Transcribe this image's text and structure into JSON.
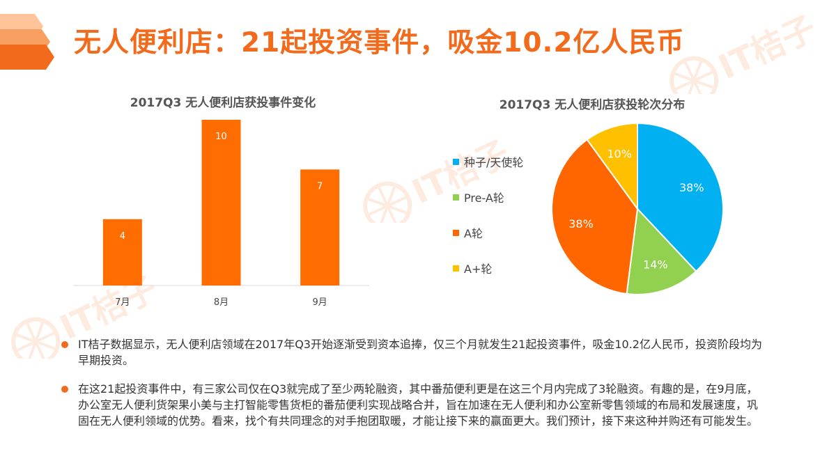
{
  "page": {
    "title": "无人便利店：21起投资事件，吸金10.2亿人民币",
    "brand": {
      "watermark_text": "IT桔子",
      "accent_color": "#f26b1d"
    }
  },
  "chart_data": [
    {
      "type": "bar",
      "title": "2017Q3 无人便利店获投事件变化",
      "categories": [
        "7月",
        "8月",
        "9月"
      ],
      "values": [
        4,
        10,
        7
      ],
      "data_labels": [
        "4",
        "10",
        "7"
      ],
      "xlabel": "",
      "ylabel": "",
      "ylim": [
        0,
        10
      ],
      "grid": false,
      "color": "#ff6c00"
    },
    {
      "type": "pie",
      "title": "2017Q3 无人便利店获投轮次分布",
      "labels": [
        "种子/天使轮",
        "Pre-A轮",
        "A轮",
        "A+轮"
      ],
      "values": [
        38,
        14,
        38,
        10
      ],
      "data_labels": [
        "38%",
        "14%",
        "38%",
        "10%"
      ],
      "colors": [
        "#00b0f0",
        "#92d050",
        "#ff6600",
        "#ffc000"
      ],
      "legend_position": "left"
    }
  ],
  "bullets": [
    "IT桔子数据显示，无人便利店领域在2017年Q3开始逐渐受到资本追捧，仅三个月就发生21起投资事件，吸金10.2亿人民币，投资阶段均为早期投资。",
    "在这21起投资事件中，有三家公司仅在Q3就完成了至少两轮融资，其中番茄便利更是在这三个月内完成了3轮融资。有趣的是，在9月底，办公室无人便利货架果小美与主打智能零售货柜的番茄便利实现战略合并，旨在加速在无人便利和办公室新零售领域的布局和发展速度，巩固在无人便利领域的优势。看来，找个有共同理念的对手抱团取暖，才能让接下来的赢面更大。我们预计，接下来这种并购还有可能发生。"
  ]
}
